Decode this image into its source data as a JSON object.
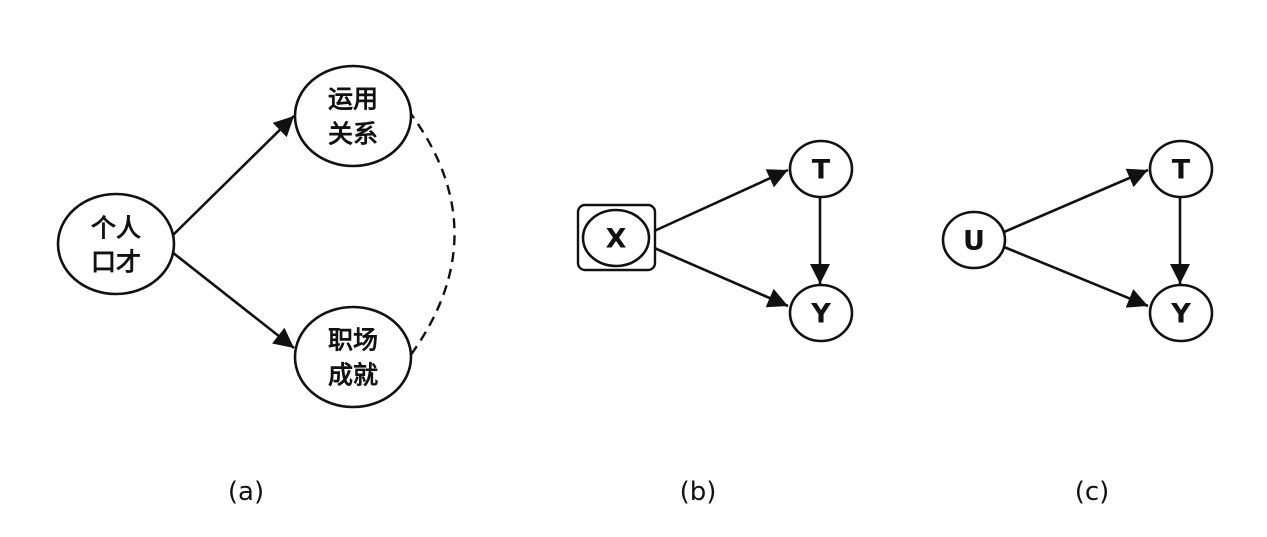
{
  "diagrams": {
    "a": {
      "caption": "(a)",
      "nodes": {
        "skill": [
          "个人",
          "口才"
        ],
        "relation": [
          "运用",
          "关系"
        ],
        "success": [
          "职场",
          "成就"
        ]
      }
    },
    "b": {
      "caption": "(b)",
      "nodes": {
        "x": "X",
        "t": "T",
        "y": "Y"
      }
    },
    "c": {
      "caption": "(c)",
      "nodes": {
        "u": "U",
        "t": "T",
        "y": "Y"
      }
    }
  }
}
